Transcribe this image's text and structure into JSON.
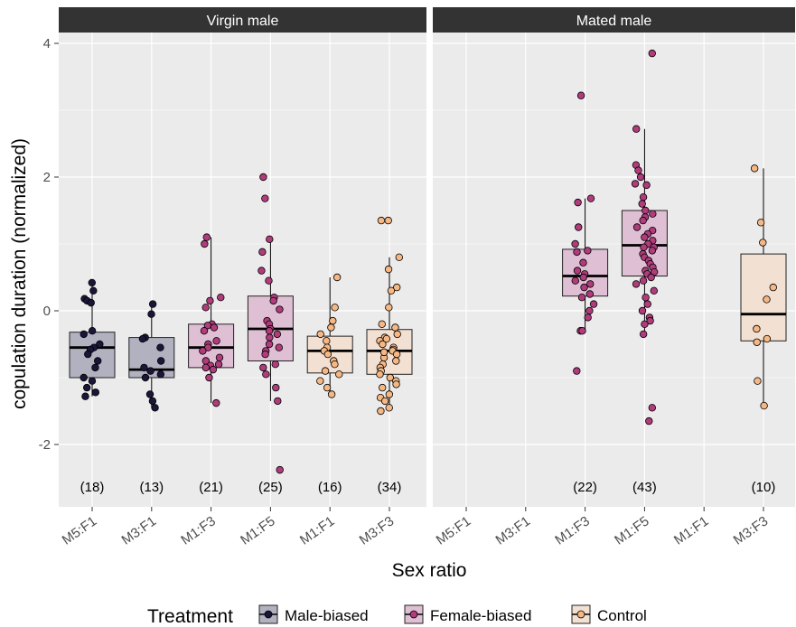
{
  "chart_data": {
    "type": "box",
    "ylabel": "copulation duration (normalized)",
    "xlabel": "Sex ratio",
    "ylim": [
      -2.9,
      4.25
    ],
    "yticks": [
      -2,
      0,
      2,
      4
    ],
    "categories": [
      "M5:F1",
      "M3:F1",
      "M1:F3",
      "M1:F5",
      "M1:F1",
      "M3:F3"
    ],
    "legend": {
      "title": "Treatment",
      "position": "bottom",
      "items": [
        {
          "label": "Male-biased",
          "color": "#1b1639"
        },
        {
          "label": "Female-biased",
          "color": "#b03c7c"
        },
        {
          "label": "Control",
          "color": "#f5b783"
        }
      ]
    },
    "colors": {
      "Male-biased": {
        "point": "#1b1639",
        "box": "#b2b1c0"
      },
      "Female-biased": {
        "point": "#b03c7c",
        "box": "#dfbfd3"
      },
      "Control": {
        "point": "#f5b783",
        "box": "#f2e0d2"
      }
    },
    "panels": [
      {
        "label": "Virgin male",
        "groups": [
          {
            "category": "M5:F1",
            "treatment": "Male-biased",
            "n_label": "(18)",
            "q1": -1.0,
            "median": -0.55,
            "q3": -0.32,
            "whisker_low": -1.28,
            "whisker_high": 0.42,
            "points": [
              0.42,
              0.3,
              0.18,
              0.15,
              0.12,
              -0.3,
              -0.35,
              -0.5,
              -0.55,
              -0.58,
              -0.65,
              -0.75,
              -0.85,
              -1.0,
              -1.05,
              -1.15,
              -1.22,
              -1.28
            ]
          },
          {
            "category": "M3:F1",
            "treatment": "Male-biased",
            "n_label": "(13)",
            "q1": -1.0,
            "median": -0.88,
            "q3": -0.4,
            "whisker_low": -1.45,
            "whisker_high": 0.1,
            "points": [
              0.1,
              -0.05,
              -0.4,
              -0.42,
              -0.55,
              -0.75,
              -0.85,
              -0.9,
              -0.95,
              -1.0,
              -1.25,
              -1.35,
              -1.45
            ]
          },
          {
            "category": "M1:F3",
            "treatment": "Female-biased",
            "n_label": "(21)",
            "q1": -0.85,
            "median": -0.55,
            "q3": -0.2,
            "whisker_low": -1.38,
            "whisker_high": 1.1,
            "points": [
              1.1,
              1.0,
              0.2,
              0.15,
              0.05,
              -0.2,
              -0.22,
              -0.3,
              -0.45,
              -0.5,
              -0.55,
              -0.6,
              -0.7,
              -0.75,
              -0.8,
              -0.82,
              -0.85,
              -0.88,
              -1.0,
              -1.38,
              -0.25
            ]
          },
          {
            "category": "M1:F5",
            "treatment": "Female-biased",
            "n_label": "(25)",
            "q1": -0.75,
            "median": -0.27,
            "q3": 0.22,
            "whisker_low": -1.35,
            "whisker_high": 1.07,
            "points": [
              2.0,
              1.68,
              1.07,
              0.88,
              0.6,
              0.45,
              0.2,
              0.15,
              0.02,
              -0.15,
              -0.2,
              -0.27,
              -0.3,
              -0.35,
              -0.4,
              -0.5,
              -0.6,
              -0.65,
              -0.8,
              -0.85,
              -0.95,
              -1.15,
              -1.35,
              -2.38,
              -0.55
            ]
          },
          {
            "category": "M1:F1",
            "treatment": "Control",
            "n_label": "(16)",
            "q1": -0.93,
            "median": -0.6,
            "q3": -0.38,
            "whisker_low": -1.25,
            "whisker_high": 0.5,
            "points": [
              0.5,
              0.05,
              -0.15,
              -0.25,
              -0.35,
              -0.45,
              -0.55,
              -0.6,
              -0.65,
              -0.75,
              -0.8,
              -0.9,
              -0.95,
              -1.05,
              -1.15,
              -1.25
            ]
          },
          {
            "category": "M3:F3",
            "treatment": "Control",
            "n_label": "(34)",
            "q1": -0.95,
            "median": -0.6,
            "q3": -0.28,
            "whisker_low": -1.5,
            "whisker_high": 0.8,
            "points": [
              1.35,
              1.35,
              0.8,
              0.62,
              0.35,
              0.3,
              0.05,
              -0.2,
              -0.25,
              -0.35,
              -0.4,
              -0.45,
              -0.5,
              -0.55,
              -0.58,
              -0.6,
              -0.65,
              -0.7,
              -0.75,
              -0.8,
              -0.85,
              -0.9,
              -0.95,
              -1.0,
              -1.05,
              -1.1,
              -1.15,
              -1.25,
              -1.3,
              -1.35,
              -1.45,
              -1.5,
              -0.42,
              -0.62
            ]
          }
        ]
      },
      {
        "label": "Mated male",
        "groups": [
          {
            "category": "M1:F3",
            "treatment": "Female-biased",
            "n_label": "(22)",
            "q1": 0.22,
            "median": 0.52,
            "q3": 0.92,
            "whisker_low": -0.3,
            "whisker_high": 1.68,
            "points": [
              3.22,
              1.68,
              1.62,
              1.25,
              1.0,
              0.9,
              0.88,
              0.72,
              0.6,
              0.55,
              0.5,
              0.45,
              0.4,
              0.35,
              0.25,
              0.2,
              0.1,
              0.0,
              -0.1,
              -0.3,
              -0.3,
              -0.9
            ]
          },
          {
            "category": "M1:F5",
            "treatment": "Female-biased",
            "n_label": "(43)",
            "q1": 0.52,
            "median": 0.98,
            "q3": 1.5,
            "whisker_low": -0.35,
            "whisker_high": 2.72,
            "points": [
              3.85,
              2.72,
              2.18,
              2.1,
              2.0,
              1.9,
              1.88,
              1.7,
              1.6,
              1.5,
              1.45,
              1.4,
              1.35,
              1.25,
              1.2,
              1.15,
              1.1,
              1.05,
              1.0,
              0.95,
              0.95,
              0.9,
              0.85,
              0.8,
              0.75,
              0.7,
              0.65,
              0.6,
              0.58,
              0.55,
              0.5,
              0.45,
              0.4,
              0.3,
              0.2,
              0.1,
              0.0,
              -0.1,
              -0.15,
              -0.2,
              -0.35,
              -1.45,
              -1.65
            ]
          },
          {
            "category": "M3:F3",
            "treatment": "Control",
            "n_label": "(10)",
            "q1": -0.45,
            "median": -0.05,
            "q3": 0.85,
            "whisker_low": -1.42,
            "whisker_high": 2.13,
            "points": [
              2.13,
              1.32,
              1.02,
              0.35,
              0.17,
              -0.27,
              -0.42,
              -0.47,
              -1.05,
              -1.42
            ]
          }
        ]
      }
    ]
  }
}
